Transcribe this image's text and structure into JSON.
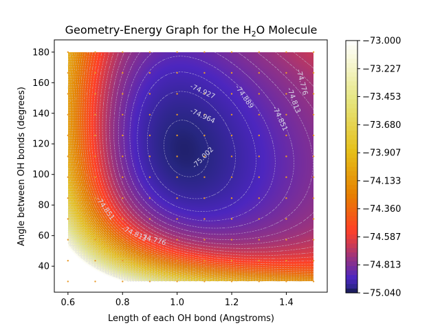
{
  "chart_data": {
    "type": "heatmap",
    "title": {
      "prefix": "Geometry-Energy Graph for the H",
      "subscript": "2",
      "suffix": "O Molecule"
    },
    "xlabel": "Length of each OH bond (Angstroms)",
    "ylabel": "Angle between OH bonds (degrees)",
    "xlim": [
      0.55,
      1.55
    ],
    "ylim": [
      23,
      188
    ],
    "data_x_range": [
      0.6,
      1.5
    ],
    "data_y_range": [
      30,
      180
    ],
    "x_ticks": [
      0.6,
      0.8,
      1.0,
      1.2,
      1.4
    ],
    "x_tick_labels": [
      "0.6",
      "0.8",
      "1.0",
      "1.2",
      "1.4"
    ],
    "y_ticks": [
      40,
      60,
      80,
      100,
      120,
      140,
      160,
      180
    ],
    "y_tick_labels": [
      "40",
      "60",
      "80",
      "100",
      "120",
      "140",
      "160",
      "180"
    ],
    "colormap": "CMRmap",
    "colorbar": {
      "min": -75.04,
      "max": -73.0,
      "ticks": [
        -73.0,
        -73.227,
        -73.453,
        -73.68,
        -73.907,
        -74.133,
        -74.36,
        -74.587,
        -74.813,
        -75.04
      ],
      "tick_labels": [
        "−73.000",
        "−73.227",
        "−73.453",
        "−73.680",
        "−73.907",
        "−74.133",
        "−74.360",
        "−74.587",
        "−74.813",
        "−75.040"
      ]
    },
    "energy_minimum": {
      "r": 1.0,
      "angle": 105,
      "energy": -75.04
    },
    "sample_grid": {
      "r": [
        0.6,
        0.7,
        0.8,
        0.9,
        1.0,
        1.1,
        1.2,
        1.3,
        1.4,
        1.5
      ],
      "angle": [
        30,
        43.6,
        57.3,
        70.9,
        84.5,
        98.2,
        111.8,
        125.5,
        139.1,
        152.7,
        166.4,
        180
      ]
    },
    "contour_labels": [
      {
        "text": "-75.002",
        "r": 1.1,
        "angle": 110
      },
      {
        "text": "-74.964",
        "r": 1.09,
        "angle": 137
      },
      {
        "text": "-74.927",
        "r": 1.09,
        "angle": 153
      },
      {
        "text": "-74.889",
        "r": 1.24,
        "angle": 150
      },
      {
        "text": "-74.851",
        "r": 1.37,
        "angle": 136
      },
      {
        "text": "-74.813",
        "r": 1.42,
        "angle": 148
      },
      {
        "text": "-74.776",
        "r": 1.45,
        "angle": 160
      },
      {
        "text": "-74.851",
        "r": 0.73,
        "angle": 77
      },
      {
        "text": "-74.813",
        "r": 0.84,
        "angle": 60
      },
      {
        "text": "-74.776",
        "r": 0.91,
        "angle": 56
      }
    ]
  }
}
